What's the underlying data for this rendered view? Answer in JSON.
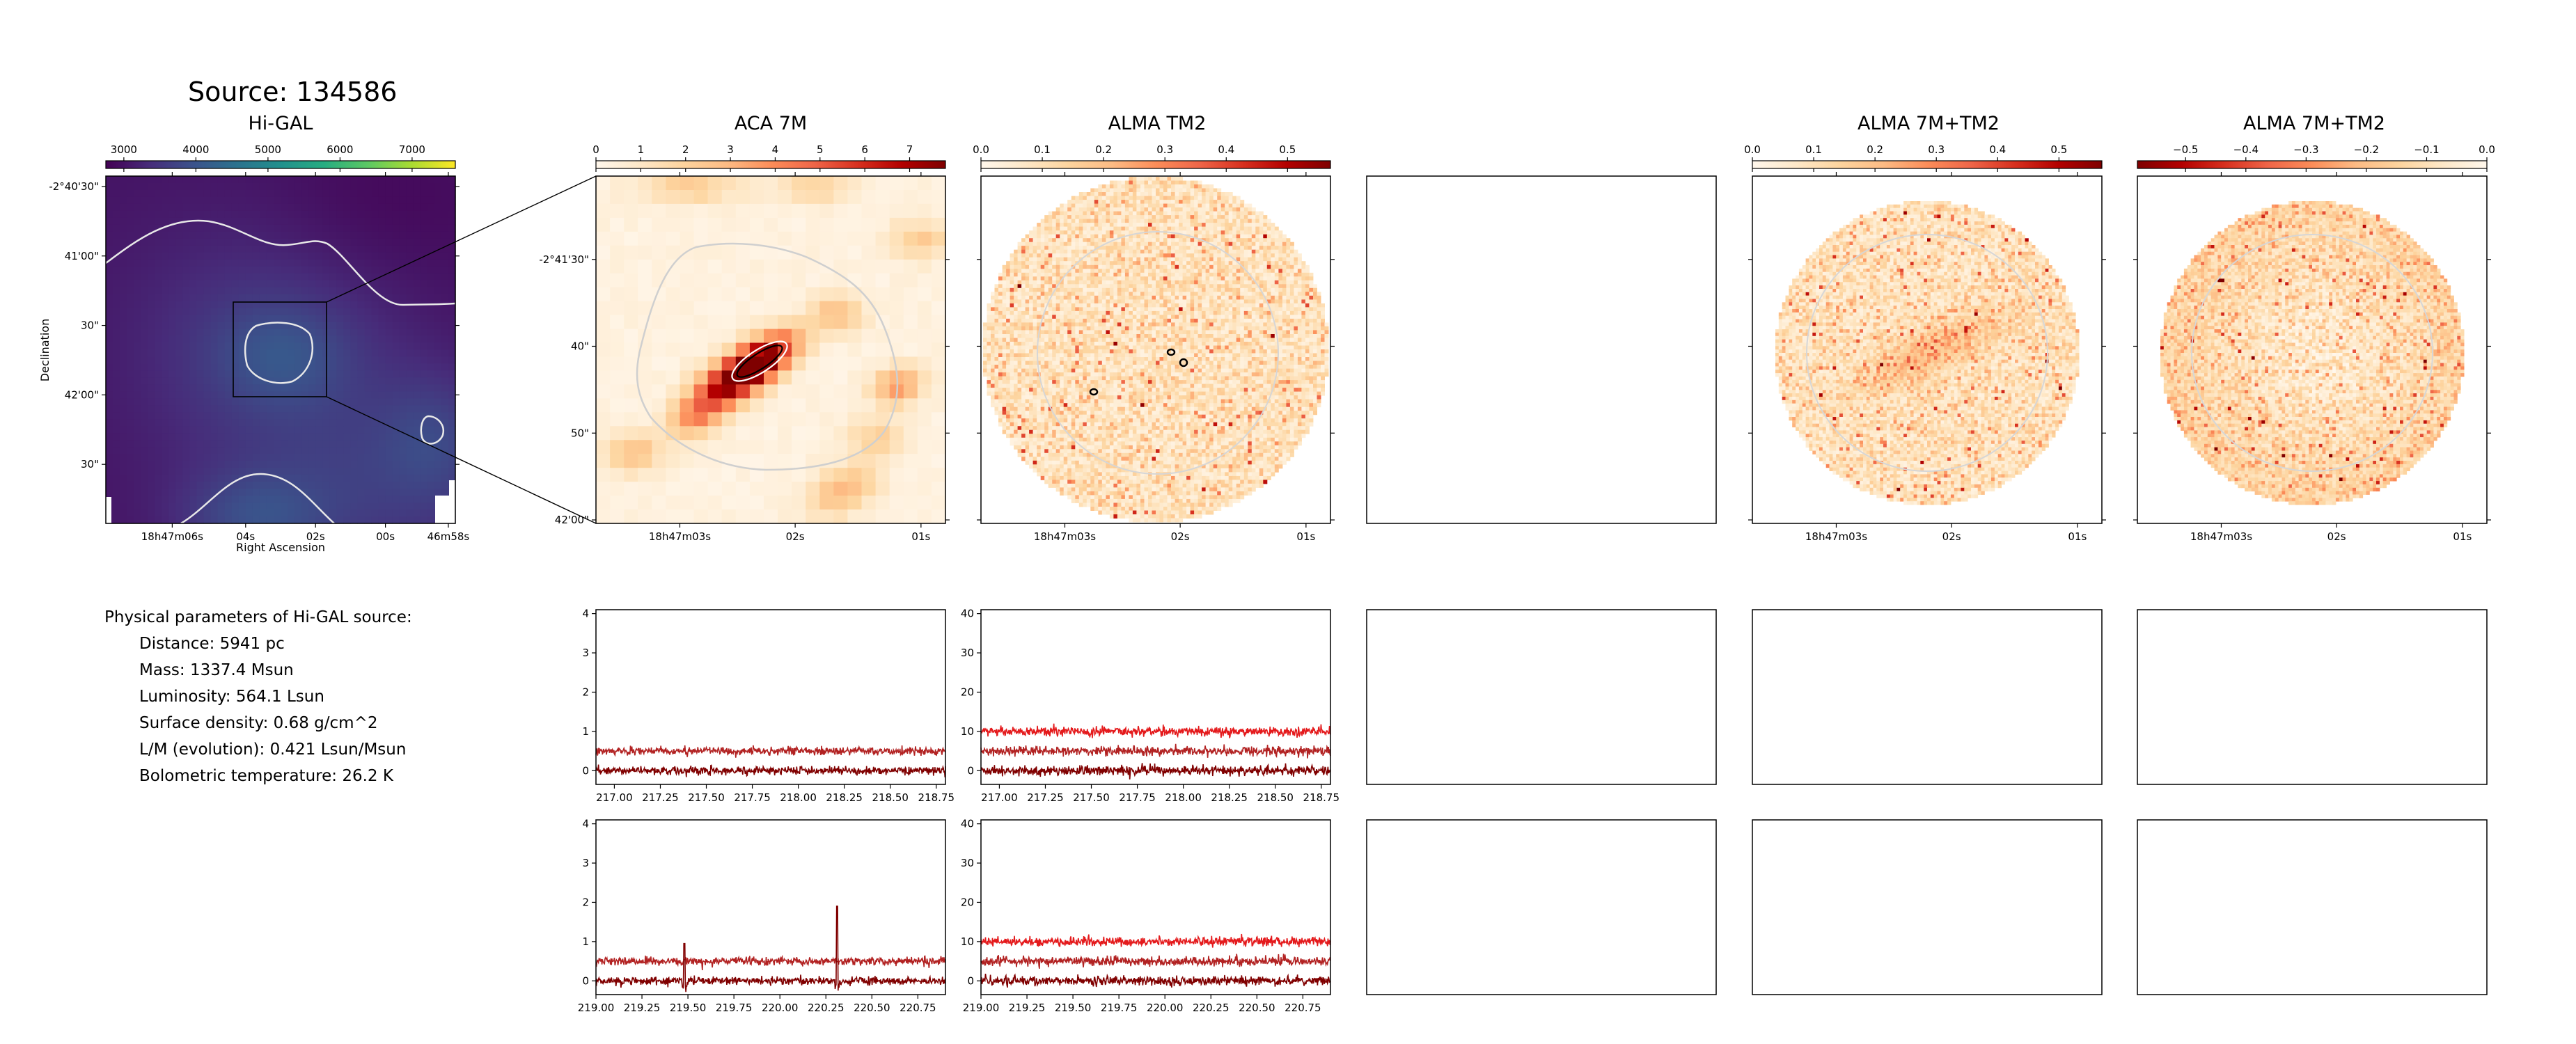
{
  "figure": {
    "source_title": "Source: 134586",
    "panel_titles": [
      "Hi-GAL",
      "ACA 7M",
      "ALMA TM2",
      "",
      "ALMA 7M+TM2",
      "ALMA 7M+TM2"
    ]
  },
  "params": {
    "heading": "Physical parameters of Hi-GAL source:",
    "lines": [
      "Distance: 5941 pc",
      "Mass: 1337.4 Msun",
      "Luminosity: 564.1 Lsun",
      "Surface density: 0.68 g/cm^2",
      "L/M (evolution): 0.421 Lsun/Msun",
      "Bolometric temperature: 26.2 K"
    ]
  },
  "colors": {
    "viridis": [
      "#440154",
      "#472c7a",
      "#3b528b",
      "#2c728e",
      "#21908d",
      "#27ad81",
      "#5cc863",
      "#aadc32",
      "#fde725"
    ],
    "orrd": [
      "#fff7ec",
      "#fee8c8",
      "#fdd49e",
      "#fdbb84",
      "#fc8d59",
      "#ef6548",
      "#d7301f",
      "#b30000",
      "#7f0000"
    ],
    "spec_bright": "#e41a1c",
    "spec_mid": "#b22222",
    "spec_dark": "#800000",
    "contour": "#d0d0d0"
  },
  "chart_data": [
    {
      "type": "heatmap",
      "title": "Hi-GAL",
      "colorbar_ticks": [
        "3000",
        "4000",
        "5000",
        "6000",
        "7000"
      ],
      "colorbar_range": [
        2750,
        7600
      ],
      "colormap": "viridis",
      "y_ticks": [
        "-2°40'30\"",
        "41'00\"",
        "30\"",
        "42'00\"",
        "30\""
      ],
      "x_ticks": [
        "18h47m06s",
        "04s",
        "02s",
        "00s",
        "46m58s"
      ],
      "xlabel": "Right Ascension",
      "ylabel": "Declination"
    },
    {
      "type": "heatmap",
      "title": "ACA 7M",
      "colorbar_ticks": [
        "0",
        "1",
        "2",
        "3",
        "4",
        "5",
        "6",
        "7"
      ],
      "colorbar_range": [
        0,
        7.8
      ],
      "colormap": "OrRd",
      "y_ticks": [
        "-2°41'30\"",
        "40\"",
        "50\"",
        "42'00\""
      ],
      "x_ticks": [
        "18h47m03s",
        "02s",
        "01s"
      ]
    },
    {
      "type": "heatmap",
      "title": "ALMA TM2",
      "colorbar_ticks": [
        "0.0",
        "0.1",
        "0.2",
        "0.3",
        "0.4",
        "0.5"
      ],
      "colorbar_range": [
        0,
        0.57
      ],
      "colormap": "OrRd",
      "x_ticks": [
        "18h47m03s",
        "02s",
        "01s"
      ]
    },
    {
      "type": "heatmap",
      "title": "ALMA 7M+TM2",
      "colorbar_ticks": [
        "0.0",
        "0.1",
        "0.2",
        "0.3",
        "0.4",
        "0.5"
      ],
      "colorbar_range": [
        0,
        0.57
      ],
      "colormap": "OrRd",
      "x_ticks": [
        "18h47m03s",
        "02s",
        "01s"
      ]
    },
    {
      "type": "heatmap",
      "title": "ALMA 7M+TM2",
      "colorbar_ticks": [
        "−0.5",
        "−0.4",
        "−0.3",
        "−0.2",
        "−0.1",
        "0.0"
      ],
      "colorbar_range": [
        -0.58,
        0
      ],
      "colormap": "OrRd_r",
      "x_ticks": [
        "18h47m03s",
        "02s",
        "01s"
      ]
    },
    {
      "type": "line",
      "panel": "ACA 7M spectrum, window 1",
      "xlim": [
        216.9,
        218.8
      ],
      "ylim": [
        -0.35,
        4.1
      ],
      "x_ticks": [
        "217.00",
        "217.25",
        "217.50",
        "217.75",
        "218.00",
        "218.25",
        "218.50",
        "218.75"
      ],
      "y_ticks": [
        "0",
        "1",
        "2",
        "3",
        "4"
      ],
      "series": [
        {
          "color": "spec_mid",
          "level": 0.5,
          "noise": 0.05
        },
        {
          "color": "spec_dark",
          "level": 0.0,
          "noise": 0.05
        }
      ]
    },
    {
      "type": "line",
      "panel": "ALMA TM2 spectrum, window 1",
      "xlim": [
        216.9,
        218.8
      ],
      "ylim": [
        -3.5,
        41
      ],
      "x_ticks": [
        "217.00",
        "217.25",
        "217.50",
        "217.75",
        "218.00",
        "218.25",
        "218.50",
        "218.75"
      ],
      "y_ticks": [
        "0",
        "10",
        "20",
        "30",
        "40"
      ],
      "series": [
        {
          "color": "spec_bright",
          "level": 10,
          "noise": 0.6
        },
        {
          "color": "spec_mid",
          "level": 5,
          "noise": 0.6
        },
        {
          "color": "spec_dark",
          "level": 0,
          "noise": 0.6
        }
      ]
    },
    {
      "type": "line",
      "panel": "ACA 7M spectrum, window 2",
      "xlim": [
        219.0,
        220.9
      ],
      "ylim": [
        -0.35,
        4.1
      ],
      "x_ticks": [
        "219.00",
        "219.25",
        "219.50",
        "219.75",
        "220.00",
        "220.25",
        "220.50",
        "220.75"
      ],
      "y_ticks": [
        "0",
        "1",
        "2",
        "3",
        "4"
      ],
      "series": [
        {
          "color": "spec_mid",
          "level": 0.5,
          "noise": 0.05
        },
        {
          "color": "spec_dark",
          "level": 0.0,
          "noise": 0.05,
          "lines": [
            [
              219.48,
              0.95
            ],
            [
              220.31,
              1.9
            ]
          ]
        }
      ]
    },
    {
      "type": "line",
      "panel": "ALMA TM2 spectrum, window 2",
      "xlim": [
        219.0,
        220.9
      ],
      "ylim": [
        -3.5,
        41
      ],
      "x_ticks": [
        "219.00",
        "219.25",
        "219.50",
        "219.75",
        "220.00",
        "220.25",
        "220.50",
        "220.75"
      ],
      "y_ticks": [
        "0",
        "10",
        "20",
        "30",
        "40"
      ],
      "series": [
        {
          "color": "spec_bright",
          "level": 10,
          "noise": 0.6
        },
        {
          "color": "spec_mid",
          "level": 5,
          "noise": 0.6
        },
        {
          "color": "spec_dark",
          "level": 0,
          "noise": 0.6
        }
      ]
    }
  ]
}
